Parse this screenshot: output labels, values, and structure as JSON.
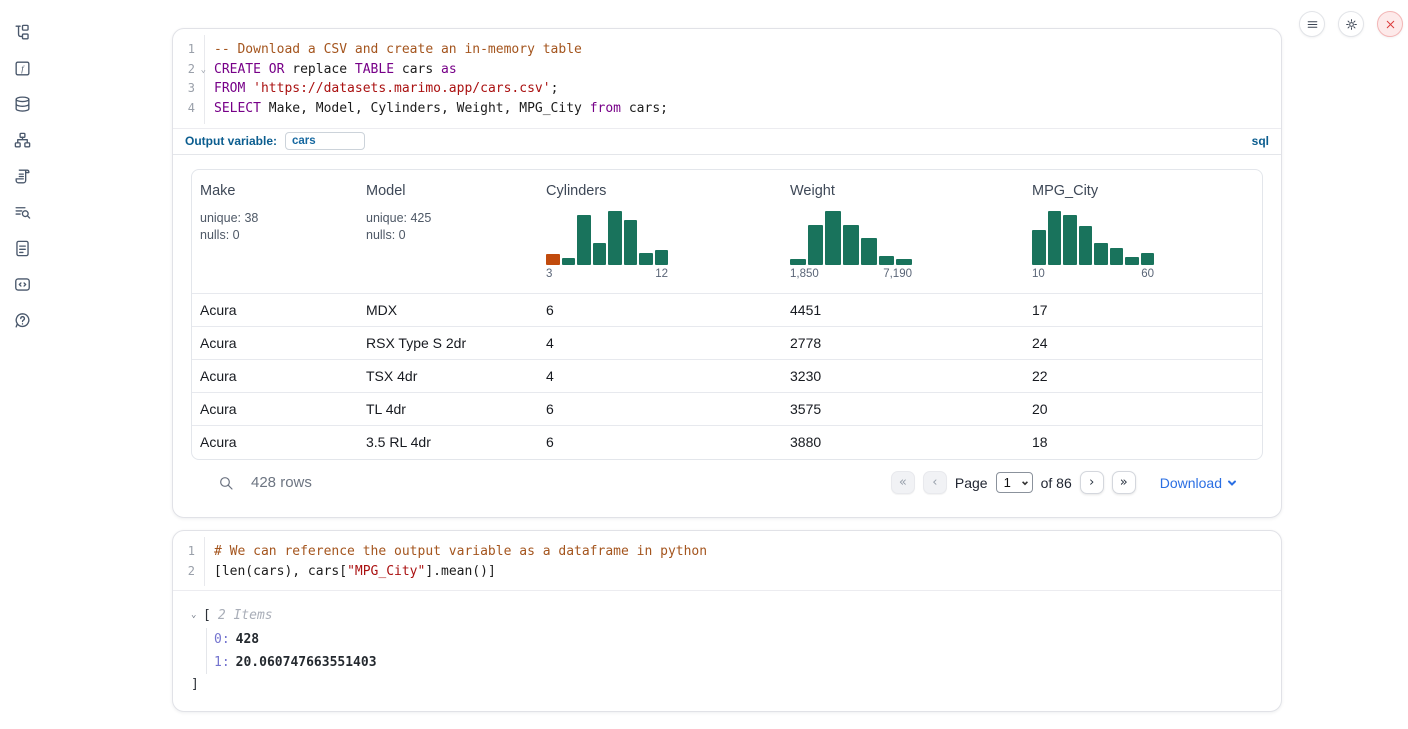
{
  "sidebar": {
    "icons": [
      {
        "name": "file-explorer-icon"
      },
      {
        "name": "variables-icon"
      },
      {
        "name": "datasources-icon"
      },
      {
        "name": "dependency-graph-icon"
      },
      {
        "name": "scratchpad-icon"
      },
      {
        "name": "logs-icon"
      },
      {
        "name": "documentation-icon"
      },
      {
        "name": "snippets-icon"
      },
      {
        "name": "help-icon"
      }
    ]
  },
  "topbar": {
    "buttons": [
      {
        "name": "menu-icon"
      },
      {
        "name": "settings-icon"
      },
      {
        "name": "shutdown-icon"
      }
    ]
  },
  "cells": {
    "sql": {
      "line_numbers": [
        "1",
        "2",
        "3",
        "4"
      ],
      "lines": [
        [
          {
            "t": "-- Download a CSV and create an in-memory table",
            "s": "comment"
          }
        ],
        [
          {
            "t": "CREATE",
            "s": "kw"
          },
          {
            "t": " ",
            "s": "p"
          },
          {
            "t": "OR",
            "s": "kw"
          },
          {
            "t": " replace ",
            "s": "p"
          },
          {
            "t": "TABLE",
            "s": "kw"
          },
          {
            "t": " cars ",
            "s": "p"
          },
          {
            "t": "as",
            "s": "kw"
          }
        ],
        [
          {
            "t": "FROM",
            "s": "kw"
          },
          {
            "t": " ",
            "s": "p"
          },
          {
            "t": "'https://datasets.marimo.app/cars.csv'",
            "s": "str"
          },
          {
            "t": ";",
            "s": "p"
          }
        ],
        [
          {
            "t": "SELECT",
            "s": "kw"
          },
          {
            "t": " Make, Model, Cylinders, Weight, MPG_City ",
            "s": "p"
          },
          {
            "t": "from",
            "s": "kw"
          },
          {
            "t": " cars;",
            "s": "p"
          }
        ]
      ],
      "output_variable_label": "Output variable:",
      "output_variable_value": "cars",
      "language_badge": "sql"
    },
    "python": {
      "line_numbers": [
        "1",
        "2"
      ],
      "lines": [
        [
          {
            "t": "# We can reference the output variable as a dataframe in python",
            "s": "comment"
          }
        ],
        [
          {
            "t": "[len(cars), cars[",
            "s": "p"
          },
          {
            "t": "\"MPG_City\"",
            "s": "str"
          },
          {
            "t": "].mean()]",
            "s": "p"
          }
        ]
      ],
      "output_tree": {
        "open_bracket": "[",
        "items_label": "2 Items",
        "entries": [
          {
            "key": "0:",
            "value": "428"
          },
          {
            "key": "1:",
            "value": "20.060747663551403"
          }
        ],
        "close_bracket": "]"
      }
    }
  },
  "table": {
    "columns": [
      {
        "name": "Make",
        "unique": "unique: 38",
        "nulls": "nulls: 0"
      },
      {
        "name": "Model",
        "unique": "unique: 425",
        "nulls": "nulls: 0"
      },
      {
        "name": "Cylinders",
        "hist_min": "3",
        "hist_max": "12",
        "hist_bars": [
          {
            "h": 0.2,
            "c": "orange"
          },
          {
            "h": 0.13,
            "c": "green"
          },
          {
            "h": 0.93,
            "c": "green"
          },
          {
            "h": 0.41,
            "c": "green"
          },
          {
            "h": 1.0,
            "c": "green"
          },
          {
            "h": 0.83,
            "c": "green"
          },
          {
            "h": 0.22,
            "c": "green"
          },
          {
            "h": 0.28,
            "c": "green"
          }
        ]
      },
      {
        "name": "Weight",
        "hist_min": "1,850",
        "hist_max": "7,190",
        "hist_bars": [
          {
            "h": 0.1,
            "c": "green"
          },
          {
            "h": 0.73,
            "c": "green"
          },
          {
            "h": 1.0,
            "c": "green"
          },
          {
            "h": 0.73,
            "c": "green"
          },
          {
            "h": 0.5,
            "c": "green"
          },
          {
            "h": 0.17,
            "c": "green"
          },
          {
            "h": 0.1,
            "c": "green"
          }
        ]
      },
      {
        "name": "MPG_City",
        "hist_min": "10",
        "hist_max": "60",
        "hist_bars": [
          {
            "h": 0.65,
            "c": "green"
          },
          {
            "h": 1.0,
            "c": "green"
          },
          {
            "h": 0.93,
            "c": "green"
          },
          {
            "h": 0.72,
            "c": "green"
          },
          {
            "h": 0.41,
            "c": "green"
          },
          {
            "h": 0.31,
            "c": "green"
          },
          {
            "h": 0.14,
            "c": "green"
          },
          {
            "h": 0.21,
            "c": "green"
          }
        ]
      }
    ],
    "rows": [
      [
        "Acura",
        "MDX",
        "6",
        "4451",
        "17"
      ],
      [
        "Acura",
        "RSX Type S 2dr",
        "4",
        "2778",
        "24"
      ],
      [
        "Acura",
        "TSX 4dr",
        "4",
        "3230",
        "22"
      ],
      [
        "Acura",
        "TL 4dr",
        "6",
        "3575",
        "20"
      ],
      [
        "Acura",
        "3.5 RL 4dr",
        "6",
        "3880",
        "18"
      ]
    ],
    "footer": {
      "row_count": "428 rows",
      "page_label": "Page",
      "page_value": "1",
      "page_total": "of 86",
      "first_page": "«",
      "prev_page": "‹",
      "next_page": "›",
      "last_page": "»",
      "download_label": "Download"
    }
  },
  "colors": {
    "hist_green": "#19735c",
    "hist_orange": "#c14b0d",
    "accent_blue": "#0b5d8f",
    "link_blue": "#2b6fe3"
  }
}
